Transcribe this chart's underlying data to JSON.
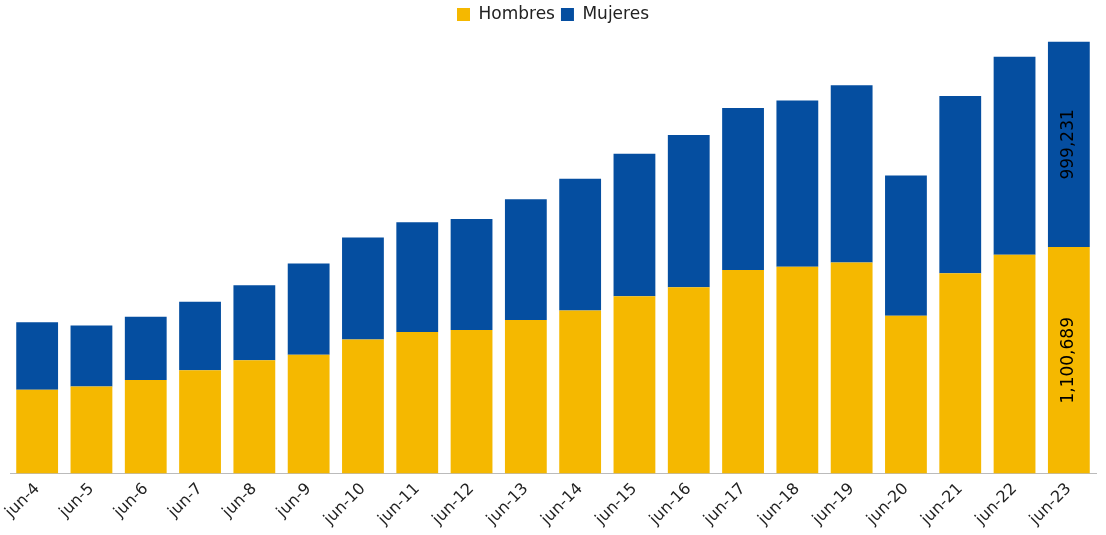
{
  "chart_data": {
    "type": "bar",
    "stacked": true,
    "legend": "top",
    "grid": false,
    "tick_labels": "x",
    "categories": [
      "jun-4",
      "jun-5",
      "jun-6",
      "jun-7",
      "jun-8",
      "jun-9",
      "jun-10",
      "jun-11",
      "jun-12",
      "jun-13",
      "jun-14",
      "jun-15",
      "jun-16",
      "jun-17",
      "jun-18",
      "jun-19",
      "jun-20",
      "jun-21",
      "jun-22",
      "jun-23"
    ],
    "series": [
      {
        "name": "Hombres",
        "color": "#f5b800",
        "values": [
          407000,
          423000,
          455000,
          502000,
          550000,
          577000,
          651000,
          688000,
          698000,
          746000,
          793000,
          862000,
          905000,
          989000,
          1005000,
          1026000,
          767000,
          973000,
          1063000,
          1100689
        ],
        "value_labels": [
          null,
          null,
          null,
          null,
          null,
          null,
          null,
          null,
          null,
          null,
          null,
          null,
          null,
          null,
          null,
          null,
          null,
          null,
          null,
          "1,100,689"
        ]
      },
      {
        "name": "Mujeres",
        "color": "#054ea0",
        "values": [
          328000,
          296000,
          307000,
          333000,
          365000,
          444000,
          497000,
          534000,
          540000,
          587000,
          640000,
          693000,
          741000,
          788000,
          809000,
          862000,
          682000,
          862000,
          963000,
          999231
        ],
        "value_labels": [
          null,
          null,
          null,
          null,
          null,
          null,
          null,
          null,
          null,
          null,
          null,
          null,
          null,
          null,
          null,
          null,
          null,
          null,
          null,
          "999,231"
        ]
      }
    ]
  }
}
